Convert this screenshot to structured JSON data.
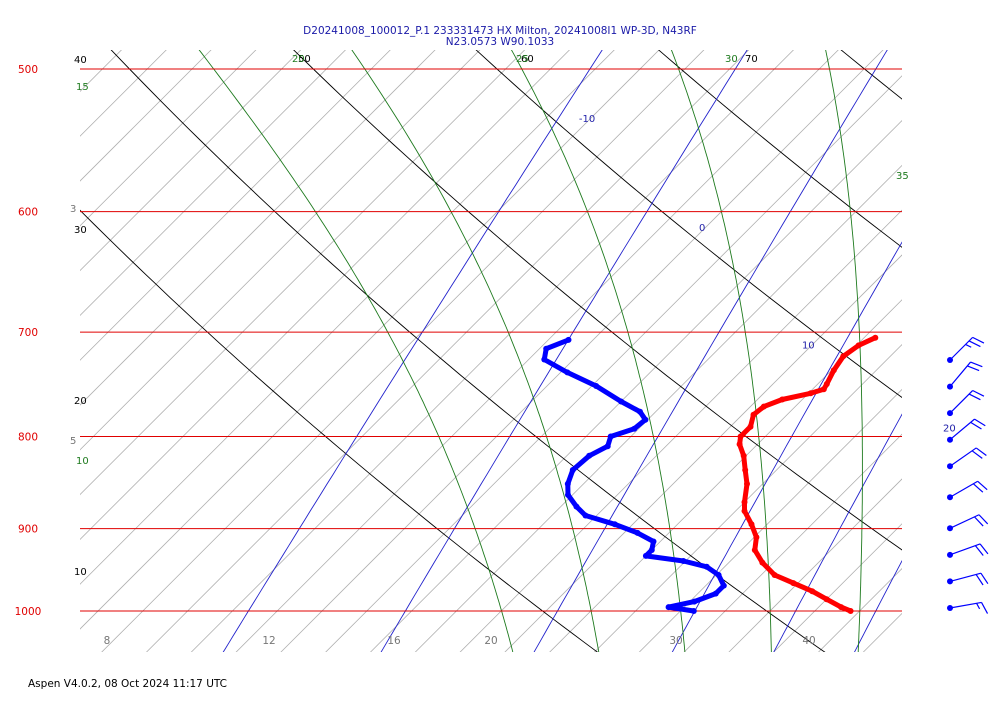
{
  "title": "D20241008_100012_P.1 233331473 HX Milton, 20241008I1 WP-3D, N43RF",
  "subtitle": "N23.0573 W90.1033",
  "footer": "Aspen V4.0.2, 08 Oct 2024  11:17 UTC",
  "colors": {
    "isobar": "#e00000",
    "isotherm": "#b0b0b0",
    "dry_adiabat": "#000000",
    "moist_adiabat": "#1e7a1e",
    "mixing_ratio": "#2222cc",
    "temperature": "#ff0000",
    "dewpoint": "#0000ff",
    "wind": "#0000ff"
  },
  "chart_data": {
    "type": "line",
    "chart_kind": "skew-T log-P thermodynamic diagram",
    "title": "D20241008_100012_P.1 233331473 HX Milton, 20241008I1 WP-3D, N43RF",
    "subtitle": "N23.0573 W90.1033",
    "y_axis": {
      "scale": "log",
      "units": "hPa",
      "range": [
        1000,
        500
      ],
      "ticks": [
        500,
        600,
        700,
        800,
        900,
        1000
      ]
    },
    "x_axis": {
      "units": "degC",
      "skewed": true,
      "tick_labels": [
        "8",
        "12",
        "16",
        "20",
        "30",
        "40"
      ]
    },
    "isotherm_labels": [
      {
        "text": "-10",
        "p": 535
      },
      {
        "text": "0",
        "p": 615
      },
      {
        "text": "10",
        "p": 715
      },
      {
        "text": "20",
        "p": 795
      },
      {
        "text": "30",
        "p": 925
      }
    ],
    "dry_adiabat_labels": [
      {
        "text": "40",
        "side": "left",
        "p": 500
      },
      {
        "text": "30",
        "side": "left",
        "p": 615
      },
      {
        "text": "20",
        "side": "left",
        "p": 775
      },
      {
        "text": "10",
        "side": "left",
        "p": 955
      },
      {
        "text": "50",
        "side": "top",
        "p": 500
      },
      {
        "text": "60",
        "side": "top",
        "p": 500
      },
      {
        "text": "70",
        "side": "top",
        "p": 500
      }
    ],
    "moist_adiabat_labels": [
      {
        "text": "15",
        "p": 520
      },
      {
        "text": "10",
        "p": 840
      },
      {
        "text": "20",
        "p": 500
      },
      {
        "text": "25",
        "p": 500
      },
      {
        "text": "30",
        "p": 500
      },
      {
        "text": "35",
        "p": 565
      }
    ],
    "mixing_ratio_labels": [
      {
        "text": "3",
        "p": 600
      },
      {
        "text": "5",
        "p": 805
      }
    ],
    "series": [
      {
        "name": "Temperature",
        "points": [
          {
            "p": 705,
            "t": 12.5
          },
          {
            "p": 712,
            "t": 12.1
          },
          {
            "p": 722,
            "t": 11.9
          },
          {
            "p": 735,
            "t": 12.1
          },
          {
            "p": 748,
            "t": 12.4
          },
          {
            "p": 753,
            "t": 12.5
          },
          {
            "p": 757,
            "t": 12.1
          },
          {
            "p": 763,
            "t": 11.1
          },
          {
            "p": 770,
            "t": 10.6
          },
          {
            "p": 778,
            "t": 10.5
          },
          {
            "p": 790,
            "t": 10.9
          },
          {
            "p": 800,
            "t": 10.9
          },
          {
            "p": 808,
            "t": 11.2
          },
          {
            "p": 820,
            "t": 11.9
          },
          {
            "p": 835,
            "t": 12.6
          },
          {
            "p": 850,
            "t": 13.3
          },
          {
            "p": 870,
            "t": 14.0
          },
          {
            "p": 880,
            "t": 14.4
          },
          {
            "p": 895,
            "t": 15.3
          },
          {
            "p": 910,
            "t": 16.1
          },
          {
            "p": 925,
            "t": 16.6
          },
          {
            "p": 940,
            "t": 17.5
          },
          {
            "p": 955,
            "t": 18.6
          },
          {
            "p": 965,
            "t": 19.8
          },
          {
            "p": 975,
            "t": 21.0
          },
          {
            "p": 985,
            "t": 22.0
          },
          {
            "p": 995,
            "t": 23.0
          },
          {
            "p": 1000,
            "t": 23.6
          }
        ]
      },
      {
        "name": "Dewpoint",
        "points": [
          {
            "p": 707,
            "t": -1.1
          },
          {
            "p": 715,
            "t": -1.7
          },
          {
            "p": 725,
            "t": -1.3
          },
          {
            "p": 737,
            "t": 0.3
          },
          {
            "p": 750,
            "t": 2.2
          },
          {
            "p": 765,
            "t": 4.0
          },
          {
            "p": 775,
            "t": 5.3
          },
          {
            "p": 783,
            "t": 5.9
          },
          {
            "p": 792,
            "t": 5.8
          },
          {
            "p": 800,
            "t": 5.1
          },
          {
            "p": 810,
            "t": 5.4
          },
          {
            "p": 820,
            "t": 5.0
          },
          {
            "p": 835,
            "t": 4.9
          },
          {
            "p": 850,
            "t": 5.3
          },
          {
            "p": 862,
            "t": 5.8
          },
          {
            "p": 875,
            "t": 6.7
          },
          {
            "p": 885,
            "t": 7.5
          },
          {
            "p": 895,
            "t": 9.2
          },
          {
            "p": 905,
            "t": 10.6
          },
          {
            "p": 915,
            "t": 11.7
          },
          {
            "p": 925,
            "t": 12.0
          },
          {
            "p": 932,
            "t": 12.0
          },
          {
            "p": 938,
            "t": 13.9
          },
          {
            "p": 945,
            "t": 15.2
          },
          {
            "p": 955,
            "t": 16.1
          },
          {
            "p": 968,
            "t": 16.8
          },
          {
            "p": 978,
            "t": 16.8
          },
          {
            "p": 988,
            "t": 16.2
          },
          {
            "p": 995,
            "t": 15.3
          },
          {
            "p": 1000,
            "t": 16.6
          }
        ]
      }
    ],
    "wind_barbs": [
      {
        "p": 705,
        "speed_kt": 25,
        "dir_deg": 225
      },
      {
        "p": 735,
        "speed_kt": 20,
        "dir_deg": 220
      },
      {
        "p": 765,
        "speed_kt": 20,
        "dir_deg": 225
      },
      {
        "p": 795,
        "speed_kt": 20,
        "dir_deg": 230
      },
      {
        "p": 825,
        "speed_kt": 20,
        "dir_deg": 235
      },
      {
        "p": 860,
        "speed_kt": 20,
        "dir_deg": 240
      },
      {
        "p": 895,
        "speed_kt": 20,
        "dir_deg": 245
      },
      {
        "p": 925,
        "speed_kt": 20,
        "dir_deg": 250
      },
      {
        "p": 955,
        "speed_kt": 20,
        "dir_deg": 255
      },
      {
        "p": 985,
        "speed_kt": 15,
        "dir_deg": 260
      }
    ],
    "grid": true,
    "legend": "none"
  }
}
